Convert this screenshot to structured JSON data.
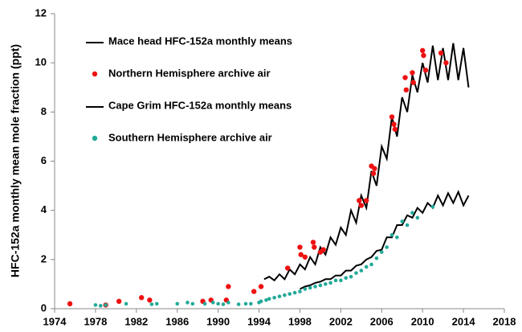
{
  "chart_data": {
    "type": "line",
    "y_label": "HFC-152a monthly mean mole fraction (ppt)",
    "xlim": [
      1974,
      2018
    ],
    "xticks": [
      1974,
      1978,
      1982,
      1986,
      1990,
      1994,
      1998,
      2002,
      2006,
      2010,
      2014,
      2018
    ],
    "ylim": [
      0,
      12
    ],
    "yticks": [
      0,
      2,
      4,
      6,
      8,
      10,
      12
    ],
    "grid": false,
    "legend": "upper left",
    "series": [
      {
        "name": "Mace head HFC-152a monthly means",
        "type": "line",
        "color": "#000000",
        "x": [
          1994.5,
          1995,
          1995.5,
          1996,
          1996.5,
          1997,
          1997.5,
          1998,
          1998.5,
          1999,
          1999.5,
          2000,
          2000.5,
          2001,
          2001.5,
          2002,
          2002.5,
          2003,
          2003.5,
          2004,
          2004.5,
          2005,
          2005.5,
          2006,
          2006.5,
          2007,
          2007.5,
          2008,
          2008.5,
          2009,
          2009.5,
          2010,
          2010.5,
          2011,
          2011.5,
          2012,
          2012.5,
          2013,
          2013.5,
          2014,
          2014.5
        ],
        "values": [
          1.2,
          1.3,
          1.15,
          1.4,
          1.2,
          1.6,
          1.4,
          1.8,
          1.6,
          2.1,
          1.8,
          2.5,
          2.2,
          2.9,
          2.6,
          3.3,
          3.0,
          4.0,
          3.5,
          4.6,
          4.1,
          5.6,
          5.0,
          6.6,
          6.1,
          7.8,
          7.0,
          8.6,
          8.0,
          9.5,
          8.8,
          10.0,
          9.2,
          10.7,
          9.3,
          10.6,
          9.3,
          10.8,
          9.3,
          10.6,
          9.0
        ]
      },
      {
        "name": "Northern Hemisphere archive air",
        "type": "scatter",
        "color": "#ee1111",
        "x": [
          1975.5,
          1979,
          1980.3,
          1982.5,
          1983.3,
          1988.5,
          1989.3,
          1990.8,
          1991,
          1993.5,
          1994.2,
          1996.8,
          1998,
          1998.1,
          1998.5,
          1999.3,
          1999.4,
          2000,
          2000.3,
          2003.8,
          2004,
          2004.5,
          2005,
          2005.2,
          2005.3,
          2007,
          2007.2,
          2007.3,
          2008.3,
          2008.4,
          2009,
          2009.1,
          2010,
          2010.1,
          2010.3,
          2011.8,
          2012.3
        ],
        "values": [
          0.2,
          0.15,
          0.3,
          0.45,
          0.35,
          0.3,
          0.35,
          0.35,
          0.9,
          0.7,
          0.9,
          1.65,
          2.5,
          2.2,
          2.1,
          2.7,
          2.5,
          2.3,
          2.4,
          4.4,
          4.2,
          4.4,
          5.8,
          5.5,
          5.7,
          7.8,
          7.5,
          7.3,
          9.4,
          8.9,
          9.6,
          9.2,
          10.5,
          10.3,
          9.7,
          10.4,
          10.0
        ]
      },
      {
        "name": "Cape Grim HFC-152a monthly means",
        "type": "line",
        "color": "#000000",
        "x": [
          1998,
          1998.5,
          1999,
          1999.5,
          2000,
          2000.5,
          2001,
          2001.5,
          2002,
          2002.5,
          2003,
          2003.5,
          2004,
          2004.5,
          2005,
          2005.5,
          2006,
          2006.5,
          2007,
          2007.5,
          2008,
          2008.5,
          2009,
          2009.5,
          2010,
          2010.5,
          2011,
          2011.5,
          2012,
          2012.5,
          2013,
          2013.5,
          2014,
          2014.5
        ],
        "values": [
          0.8,
          0.9,
          0.95,
          1.05,
          1.1,
          1.2,
          1.2,
          1.35,
          1.35,
          1.55,
          1.55,
          1.75,
          1.8,
          2.0,
          2.1,
          2.35,
          2.4,
          2.9,
          2.9,
          3.4,
          3.4,
          3.8,
          3.7,
          4.1,
          3.9,
          4.3,
          4.1,
          4.6,
          4.2,
          4.7,
          4.3,
          4.75,
          4.2,
          4.6
        ]
      },
      {
        "name": "Southern Hemisphere archive air",
        "type": "scatter",
        "color": "#22aa99",
        "x": [
          1978,
          1978.5,
          1979,
          1981,
          1983.5,
          1984,
          1986,
          1987,
          1987.5,
          1988.7,
          1989.5,
          1990,
          1990.5,
          1991,
          1992,
          1992.7,
          1993.2,
          1994,
          1994.2,
          1994.7,
          1995,
          1995.5,
          1996,
          1996.5,
          1997,
          1997.5,
          1998,
          1998.5,
          1999,
          1999.5,
          2000,
          2000.5,
          2001,
          2001.5,
          2002,
          2002.5,
          2003,
          2003.5,
          2004,
          2004.5,
          2005,
          2005.5,
          2006,
          2006.5,
          2007,
          2007.5,
          2008,
          2008.5,
          2009,
          2009.5,
          2011
        ],
        "values": [
          0.15,
          0.12,
          0.15,
          0.2,
          0.18,
          0.2,
          0.2,
          0.25,
          0.2,
          0.2,
          0.25,
          0.2,
          0.18,
          0.25,
          0.18,
          0.2,
          0.2,
          0.25,
          0.3,
          0.35,
          0.4,
          0.45,
          0.5,
          0.55,
          0.6,
          0.65,
          0.7,
          0.8,
          0.85,
          0.9,
          0.95,
          1.0,
          1.05,
          1.15,
          1.15,
          1.25,
          1.3,
          1.45,
          1.55,
          1.7,
          1.8,
          2.05,
          2.3,
          2.5,
          3.0,
          2.9,
          3.55,
          3.4,
          3.9,
          3.7,
          4.15
        ]
      }
    ]
  }
}
